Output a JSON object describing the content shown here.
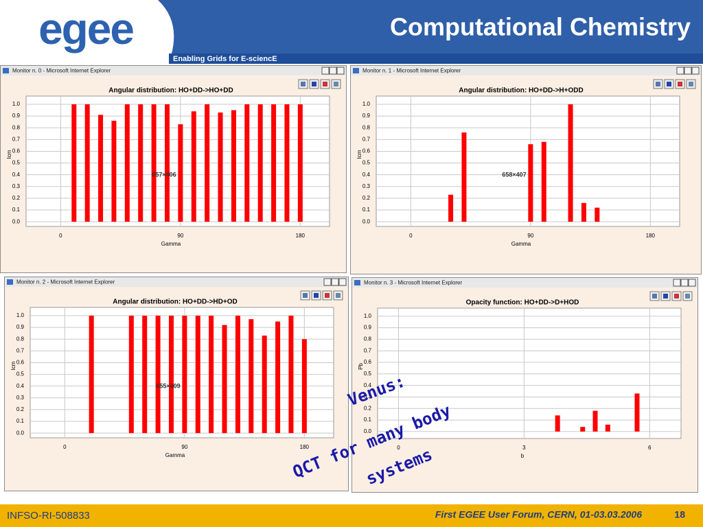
{
  "slide": {
    "logo": "egee",
    "tagline": "Enabling Grids for E-sciencE",
    "title": "Computational Chemistry",
    "footer_left": "INFSO-RI-508833",
    "footer_center": "First EGEE User Forum, CERN, 01-03.03.2006",
    "page": "18",
    "annotation": [
      "Venus:",
      "QCT for many body",
      "systems"
    ]
  },
  "chart_data": [
    {
      "type": "bar",
      "window_title": "Monitor n. 0 - Microsoft Internet Explorer",
      "title": "Angular distribution: HO+DD->HO+DD",
      "x_label": "Gamma",
      "y_label": "Icm",
      "size_label": "657×406",
      "color": "#ff0000",
      "grid": true,
      "x": [
        10,
        20,
        30,
        40,
        50,
        60,
        70,
        80,
        90,
        100,
        110,
        120,
        130,
        140,
        150,
        160,
        170,
        180
      ],
      "values": [
        1.0,
        1.0,
        0.91,
        0.86,
        1.0,
        1.0,
        1.0,
        1.0,
        0.83,
        0.94,
        1.0,
        0.93,
        0.95,
        1.0,
        1.0,
        1.0,
        1.0,
        1.0
      ],
      "xlim": [
        -26,
        202
      ],
      "ylim": [
        -0.04,
        1.07
      ],
      "xticks": [
        0,
        90,
        180
      ],
      "yticks": [
        {
          "value": 0,
          "label": "0.0"
        },
        0.1,
        0.2,
        0.3,
        0.4,
        0.5,
        0.6,
        0.7,
        0.8,
        0.9,
        {
          "value": 1,
          "label": "1.0"
        }
      ]
    },
    {
      "type": "bar",
      "window_title": "Monitor n. 1 - Microsoft Internet Explorer",
      "title": "Angular distribution: HO+DD->H+ODD",
      "x_label": "Gamma",
      "y_label": "Icm",
      "size_label": "658×407",
      "color": "#ff0000",
      "grid": true,
      "x": [
        30,
        40,
        90,
        100,
        120,
        130,
        140
      ],
      "values": [
        0.23,
        0.76,
        0.66,
        0.68,
        1.0,
        0.16,
        0.12
      ],
      "xlim": [
        -26,
        202
      ],
      "ylim": [
        -0.04,
        1.07
      ],
      "xticks": [
        0,
        90,
        180
      ],
      "yticks": [
        {
          "value": 0,
          "label": "0.0"
        },
        0.1,
        0.2,
        0.3,
        0.4,
        0.5,
        0.6,
        0.7,
        0.8,
        0.9,
        {
          "value": 1,
          "label": "1.0"
        }
      ]
    },
    {
      "type": "bar",
      "window_title": "Monitor n. 2 - Microsoft Internet Explorer",
      "title": "Angular distribution: HO+DD->HD+OD",
      "x_label": "Gamma",
      "y_label": "Icm",
      "size_label": "655×409",
      "color": "#ff0000",
      "grid": true,
      "x": [
        20,
        50,
        60,
        70,
        80,
        90,
        100,
        110,
        120,
        130,
        140,
        150,
        160,
        170,
        180
      ],
      "values": [
        1.0,
        1.0,
        1.0,
        1.0,
        1.0,
        1.0,
        1.0,
        1.0,
        0.92,
        1.0,
        0.97,
        0.83,
        0.95,
        1.0,
        0.8
      ],
      "xlim": [
        -26,
        202
      ],
      "ylim": [
        -0.04,
        1.07
      ],
      "xticks": [
        0,
        90,
        180
      ],
      "yticks": [
        {
          "value": 0,
          "label": "0.0"
        },
        0.1,
        0.2,
        0.3,
        0.4,
        0.5,
        0.6,
        0.7,
        0.8,
        0.9,
        {
          "value": 1,
          "label": "1.0"
        }
      ]
    },
    {
      "type": "bar",
      "window_title": "Monitor n. 3 - Microsoft Internet Explorer",
      "title": "Opacity function: HO+DD->D+HOD",
      "x_label": "b",
      "y_label": "Pb",
      "color": "#ff0000",
      "grid": true,
      "x": [
        3.8,
        4.4,
        4.7,
        5.0,
        5.7
      ],
      "values": [
        0.14,
        0.04,
        0.18,
        0.06,
        0.33
      ],
      "xlim": [
        -0.5,
        6.75
      ],
      "ylim": [
        -0.06,
        1.07
      ],
      "xticks": [
        0,
        3,
        6
      ],
      "yticks": [
        {
          "value": 0,
          "label": "0.0"
        },
        0.1,
        0.2,
        0.3,
        0.4,
        0.5,
        0.6,
        0.7,
        0.8,
        0.9,
        {
          "value": 1,
          "label": "1.0"
        }
      ]
    }
  ]
}
